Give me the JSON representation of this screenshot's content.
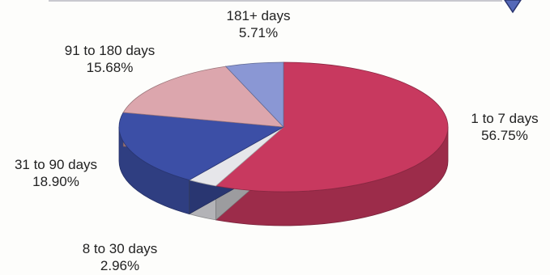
{
  "chart_data": {
    "type": "pie",
    "title": "",
    "slices": [
      {
        "label": "1 to 7 days",
        "pct_text": "56.75%",
        "value": 56.75,
        "color": "#c8395f"
      },
      {
        "label": "8 to 30 days",
        "pct_text": "2.96%",
        "value": 2.96,
        "color": "#e6e6ea"
      },
      {
        "label": "31 to 90 days",
        "pct_text": "18.90%",
        "value": 18.9,
        "color": "#3c4fa6"
      },
      {
        "label": "91 to 180 days",
        "pct_text": "15.68%",
        "value": 15.68,
        "color": "#dca6ad"
      },
      {
        "label": "181+ days",
        "pct_text": "5.71%",
        "value": 5.71,
        "color": "#8a97d4"
      }
    ],
    "start_angle_deg": 0,
    "direction": "clockwise",
    "legend": "none",
    "data_labels": "outside"
  }
}
